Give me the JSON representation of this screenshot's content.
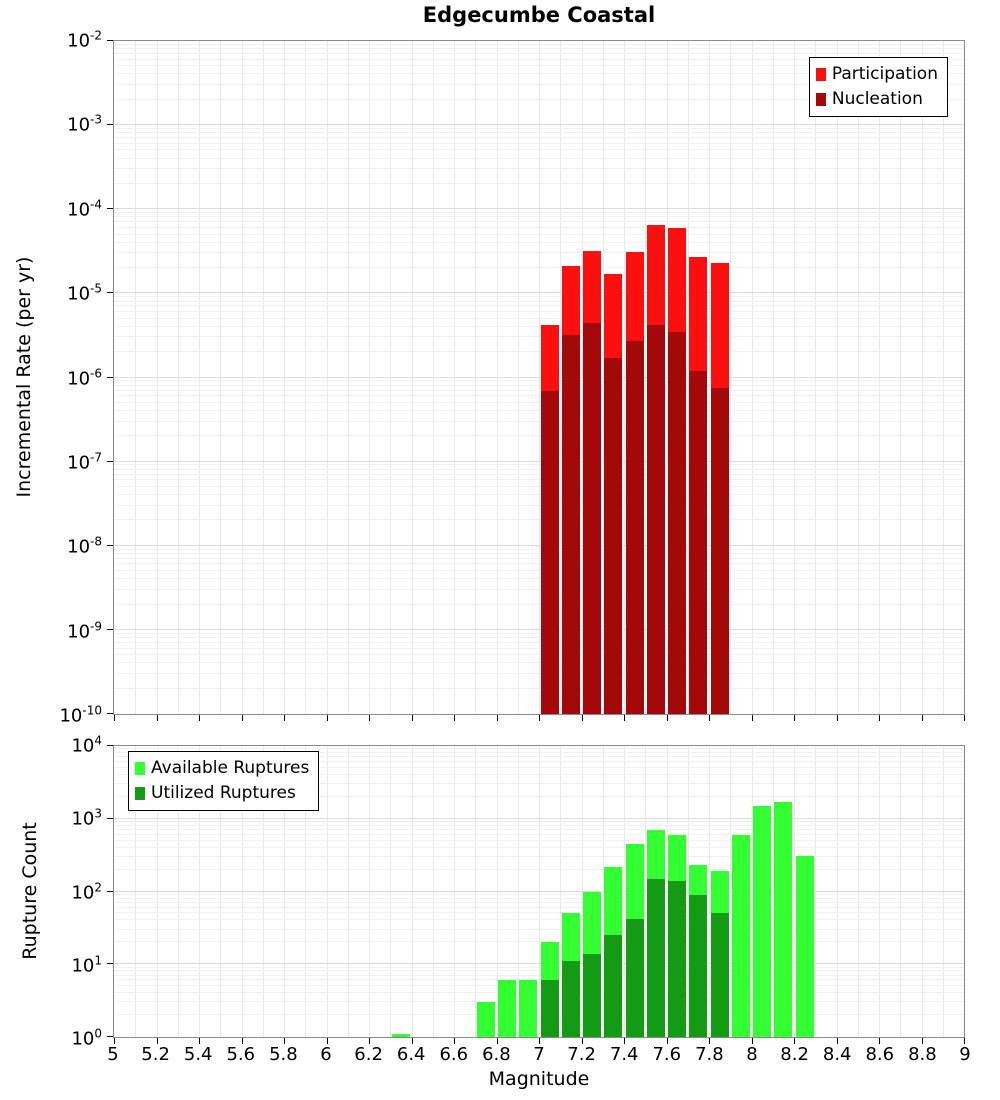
{
  "title": "Edgecumbe Coastal",
  "xlabel": "Magnitude",
  "x_ticks": [
    "5",
    "5.2",
    "5.4",
    "5.6",
    "5.8",
    "6",
    "6.2",
    "6.4",
    "6.6",
    "6.8",
    "7",
    "7.2",
    "7.4",
    "7.6",
    "7.8",
    "8",
    "8.2",
    "8.4",
    "8.6",
    "8.8",
    "9"
  ],
  "chart_data": [
    {
      "type": "bar",
      "title": "Edgecumbe Coastal",
      "ylabel": "Incremental Rate (per yr)",
      "xlabel": "Magnitude",
      "x_range": [
        5,
        9
      ],
      "y_log_range": [
        -10,
        -2
      ],
      "y_tick_exponents": [
        -2,
        -3,
        -4,
        -5,
        -6,
        -7,
        -8,
        -9,
        -10
      ],
      "bar_width": 0.1,
      "grid": true,
      "legend_position": "top-right",
      "legend": [
        {
          "label": "Participation",
          "color": "#fb0f0f"
        },
        {
          "label": "Nucleation",
          "color": "#a40808"
        }
      ],
      "series": [
        {
          "name": "Participation",
          "color": "#fb0f0f",
          "x": [
            7.05,
            7.15,
            7.25,
            7.35,
            7.45,
            7.55,
            7.65,
            7.75,
            7.85
          ],
          "values": [
            4.2e-06,
            2.1e-05,
            3.2e-05,
            1.7e-05,
            3.1e-05,
            6.5e-05,
            6e-05,
            2.7e-05,
            2.3e-05
          ]
        },
        {
          "name": "Nucleation",
          "color": "#a40808",
          "x": [
            7.05,
            7.15,
            7.25,
            7.35,
            7.45,
            7.55,
            7.65,
            7.75,
            7.85
          ],
          "values": [
            7e-07,
            3.2e-06,
            4.5e-06,
            1.7e-06,
            2.7e-06,
            4.2e-06,
            3.5e-06,
            1.2e-06,
            7.5e-07
          ]
        }
      ]
    },
    {
      "type": "bar",
      "title": "",
      "ylabel": "Rupture Count",
      "xlabel": "Magnitude",
      "x_range": [
        5,
        9
      ],
      "y_log_range": [
        0,
        4
      ],
      "y_tick_exponents": [
        4,
        3,
        2,
        1,
        0
      ],
      "bar_width": 0.1,
      "grid": true,
      "legend_position": "top-left",
      "legend": [
        {
          "label": "Available Ruptures",
          "color": "#33ff33"
        },
        {
          "label": "Utilized Ruptures",
          "color": "#149b14"
        }
      ],
      "series": [
        {
          "name": "Available Ruptures",
          "color": "#33ff33",
          "x": [
            6.35,
            6.75,
            6.85,
            6.95,
            7.05,
            7.15,
            7.25,
            7.35,
            7.45,
            7.55,
            7.65,
            7.75,
            7.85,
            7.95,
            8.05,
            8.15,
            8.25
          ],
          "values": [
            1,
            3,
            6,
            6,
            20,
            50,
            100,
            220,
            450,
            700,
            600,
            230,
            190,
            600,
            1500,
            1700,
            310
          ]
        },
        {
          "name": "Utilized Ruptures",
          "color": "#149b14",
          "x": [
            7.05,
            7.15,
            7.25,
            7.35,
            7.45,
            7.55,
            7.65,
            7.75,
            7.85
          ],
          "values": [
            6,
            11,
            14,
            25,
            42,
            150,
            140,
            90,
            50
          ]
        }
      ]
    }
  ]
}
